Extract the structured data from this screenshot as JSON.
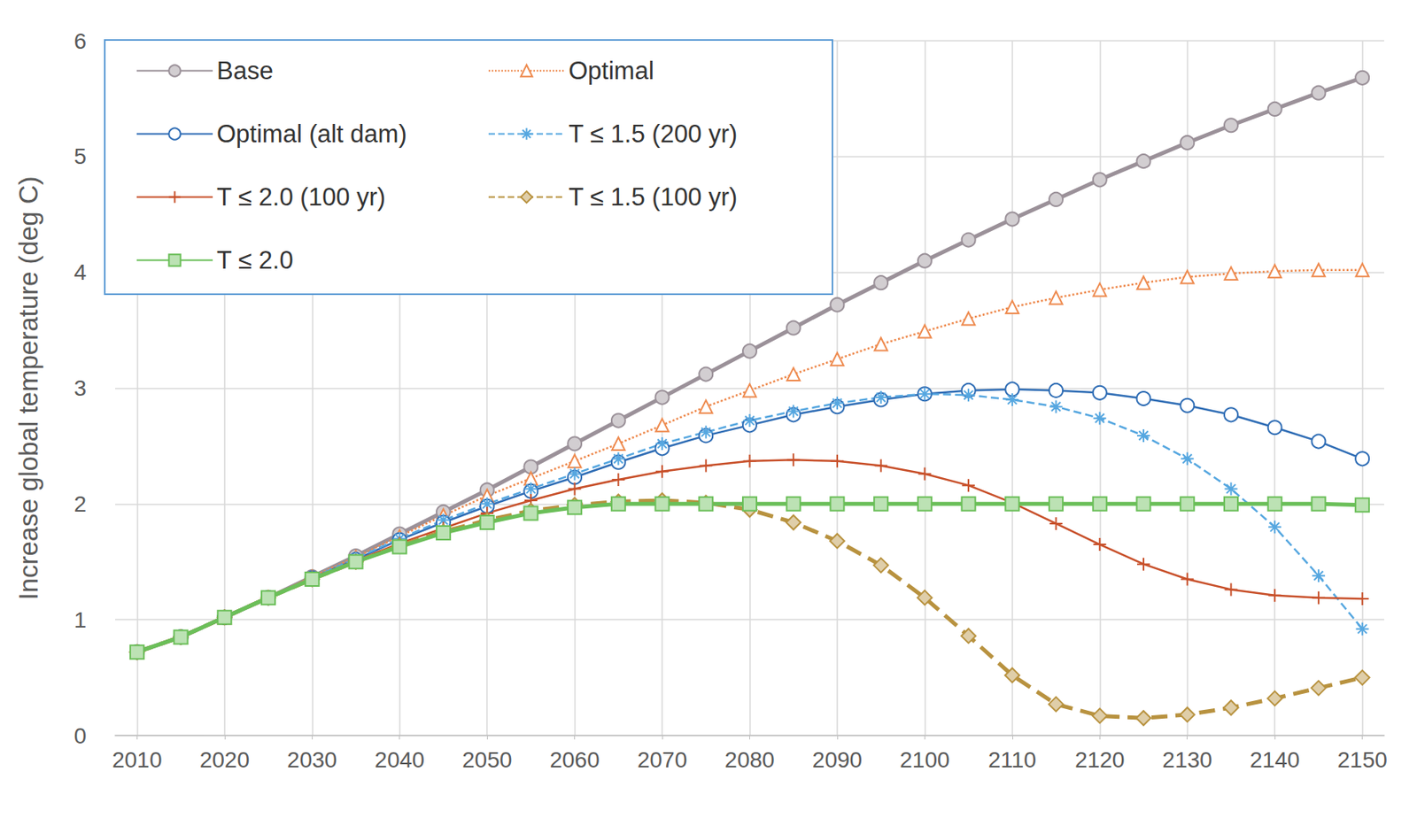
{
  "chart_data": {
    "type": "line",
    "y_label": "Increase global temperature (deg C)",
    "x": [
      2010,
      2015,
      2020,
      2025,
      2030,
      2035,
      2040,
      2045,
      2050,
      2055,
      2060,
      2065,
      2070,
      2075,
      2080,
      2085,
      2090,
      2095,
      2100,
      2105,
      2110,
      2115,
      2120,
      2125,
      2130,
      2135,
      2140,
      2145,
      2150
    ],
    "xlim": [
      2007.5,
      2152.5
    ],
    "xticks": [
      2010,
      2020,
      2030,
      2040,
      2050,
      2060,
      2070,
      2080,
      2090,
      2100,
      2110,
      2120,
      2130,
      2140,
      2150
    ],
    "ylim": [
      0,
      6
    ],
    "yticks": [
      0,
      1,
      2,
      3,
      4,
      5,
      6
    ],
    "grid": true,
    "legend": "upper left",
    "series": [
      {
        "name": "Base",
        "color": "#9b9199",
        "marker": "circle",
        "line_style": "solid",
        "values": [
          0.72,
          0.85,
          1.02,
          1.19,
          1.37,
          1.55,
          1.74,
          1.93,
          2.12,
          2.32,
          2.52,
          2.72,
          2.92,
          3.12,
          3.32,
          3.52,
          3.72,
          3.91,
          4.1,
          4.28,
          4.46,
          4.63,
          4.8,
          4.96,
          5.12,
          5.27,
          5.41,
          5.55,
          5.68
        ]
      },
      {
        "name": "Optimal",
        "color": "#ee8a4e",
        "marker": "open triangle",
        "line_style": "dotted",
        "values": [
          0.72,
          0.85,
          1.02,
          1.19,
          1.37,
          1.54,
          1.72,
          1.9,
          2.07,
          2.22,
          2.37,
          2.52,
          2.68,
          2.84,
          2.98,
          3.12,
          3.25,
          3.38,
          3.49,
          3.6,
          3.7,
          3.78,
          3.85,
          3.91,
          3.96,
          3.99,
          4.01,
          4.02,
          4.02
        ]
      },
      {
        "name": "Optimal (alt dam)",
        "color": "#2f6db5",
        "marker": "open circle",
        "line_style": "solid",
        "values": [
          0.72,
          0.85,
          1.02,
          1.19,
          1.36,
          1.52,
          1.69,
          1.84,
          1.98,
          2.11,
          2.23,
          2.36,
          2.48,
          2.59,
          2.68,
          2.77,
          2.84,
          2.9,
          2.95,
          2.98,
          2.99,
          2.98,
          2.96,
          2.91,
          2.85,
          2.77,
          2.66,
          2.54,
          2.39
        ]
      },
      {
        "name": "T ≤ 1.5 (200 yr)",
        "color": "#56a7e0",
        "marker": "asterisk",
        "line_style": "dashed",
        "values": [
          0.72,
          0.85,
          1.02,
          1.19,
          1.36,
          1.53,
          1.7,
          1.86,
          2.0,
          2.13,
          2.26,
          2.39,
          2.52,
          2.62,
          2.72,
          2.8,
          2.87,
          2.92,
          2.95,
          2.94,
          2.9,
          2.84,
          2.74,
          2.59,
          2.39,
          2.13,
          1.8,
          1.38,
          0.92
        ]
      },
      {
        "name": "T ≤ 2.0 (100 yr)",
        "color": "#c8502a",
        "marker": "plus",
        "line_style": "solid",
        "values": [
          0.72,
          0.85,
          1.02,
          1.19,
          1.35,
          1.51,
          1.66,
          1.79,
          1.92,
          2.03,
          2.13,
          2.21,
          2.28,
          2.33,
          2.37,
          2.38,
          2.37,
          2.33,
          2.26,
          2.16,
          2.01,
          1.83,
          1.65,
          1.48,
          1.35,
          1.26,
          1.21,
          1.19,
          1.18
        ]
      },
      {
        "name": "T ≤ 1.5 (100 yr)",
        "color": "#b8923f",
        "marker": "diamond",
        "line_style": "dashed",
        "values": [
          0.72,
          0.85,
          1.02,
          1.19,
          1.35,
          1.5,
          1.64,
          1.76,
          1.86,
          1.94,
          1.99,
          2.02,
          2.03,
          2.01,
          1.95,
          1.84,
          1.68,
          1.47,
          1.19,
          0.86,
          0.52,
          0.27,
          0.17,
          0.15,
          0.18,
          0.24,
          0.32,
          0.41,
          0.5
        ]
      },
      {
        "name": "T ≤ 2.0",
        "color": "#6bbf59",
        "marker": "square",
        "line_style": "solid",
        "values": [
          0.72,
          0.85,
          1.02,
          1.19,
          1.35,
          1.5,
          1.63,
          1.75,
          1.84,
          1.92,
          1.97,
          2.0,
          2.0,
          2.0,
          2.0,
          2.0,
          2.0,
          2.0,
          2.0,
          2.0,
          2.0,
          2.0,
          2.0,
          2.0,
          2.0,
          2.0,
          2.0,
          2.0,
          1.99
        ]
      }
    ]
  }
}
